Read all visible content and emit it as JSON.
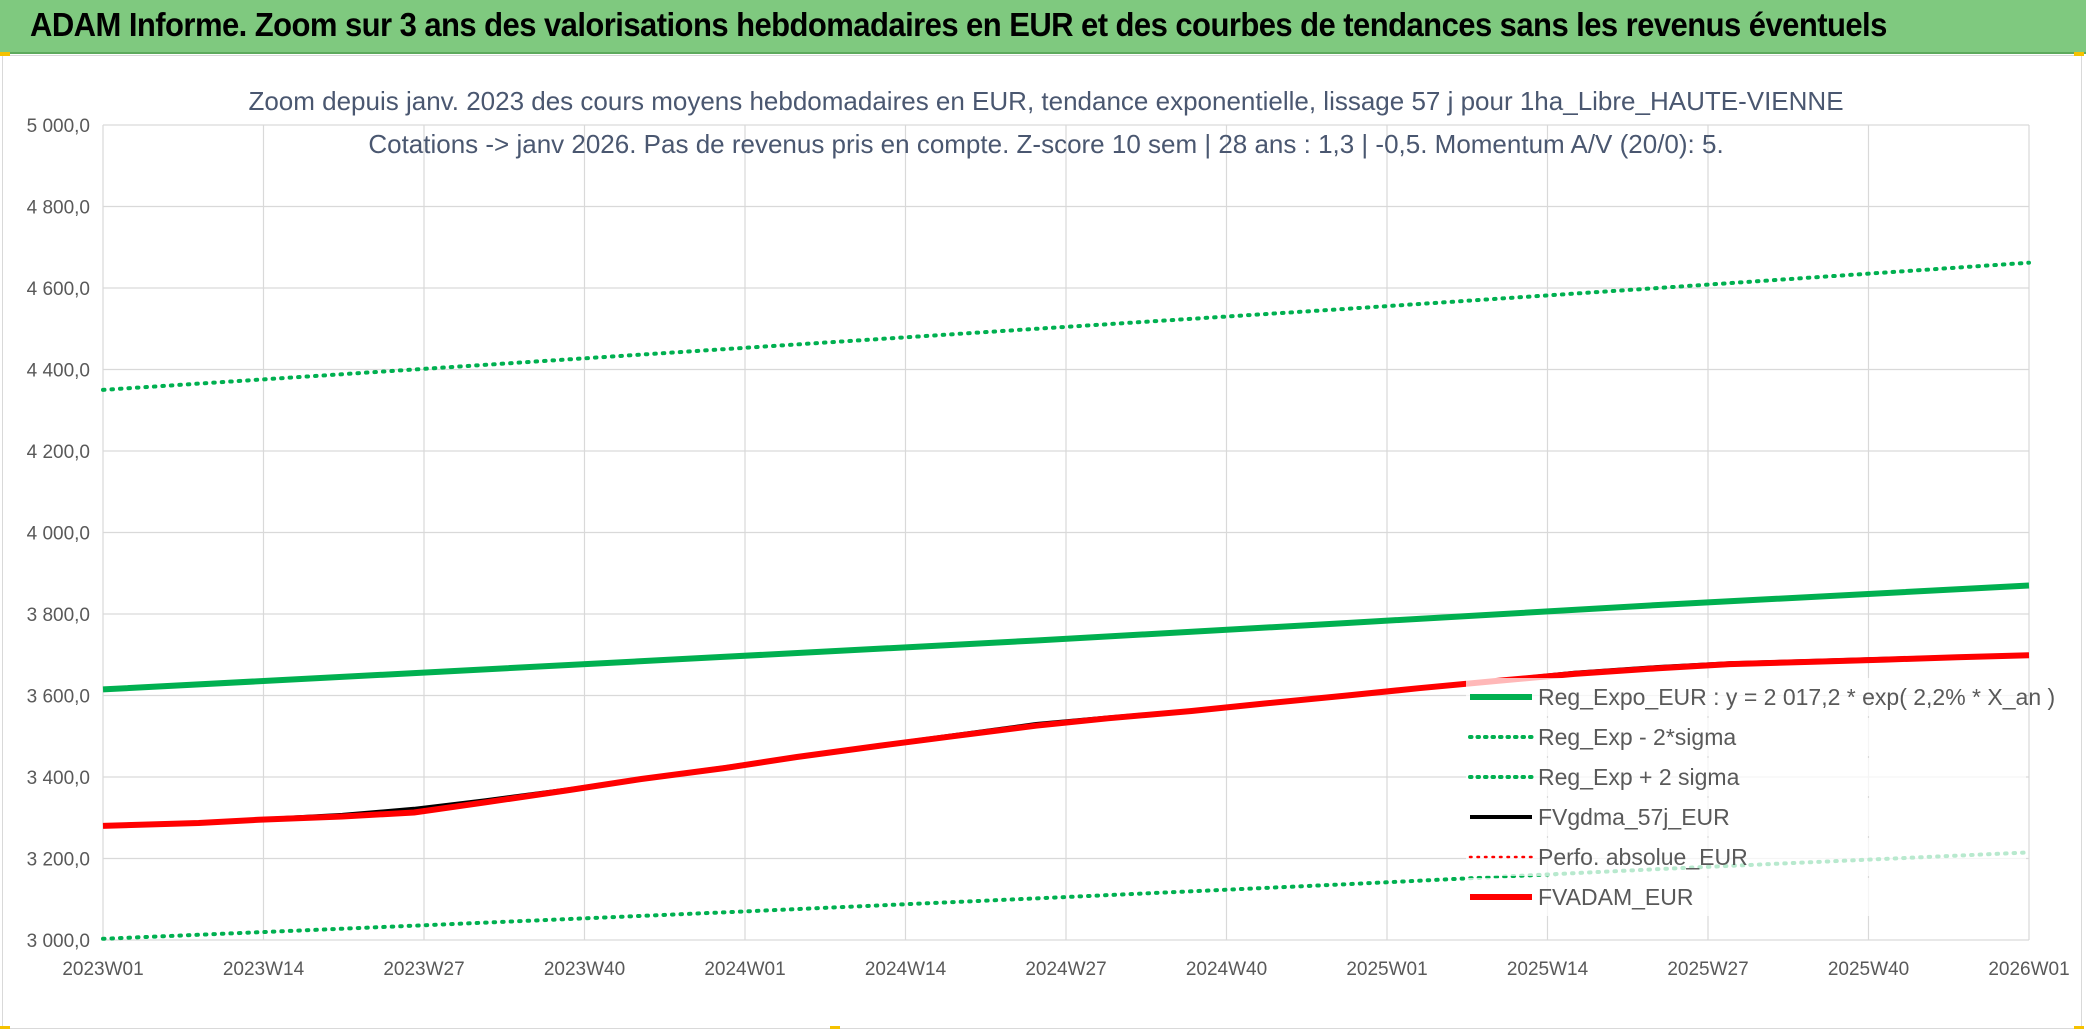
{
  "banner": {
    "title": "ADAM Informe. Zoom sur 3 ans des valorisations hebdomadaires en EUR et des courbes de tendances sans les revenus éventuels"
  },
  "colors": {
    "banner_bg": "#7fc97f",
    "trend_green": "#00b050",
    "black": "#000000",
    "red": "#ff0000",
    "grid": "#d9d9d9",
    "title_text": "#4a5770",
    "axis_text": "#595959"
  },
  "chart_data": {
    "type": "line",
    "title": "Zoom depuis janv. 2023 des cours moyens hebdomadaires en EUR, tendance exponentielle, lissage 57 j pour 1ha_Libre_HAUTE-VIENNE",
    "subtitle": "Cotations -> janv 2026. Pas de revenus pris en compte. Z-score 10 sem | 28 ans : 1,3 | -0,5. Momentum A/V (20/0): 5.",
    "xlabel": "",
    "ylabel": "",
    "x_ticks": [
      "2023W01",
      "2023W14",
      "2023W27",
      "2023W40",
      "2024W01",
      "2024W14",
      "2024W27",
      "2024W40",
      "2025W01",
      "2025W14",
      "2025W27",
      "2025W40",
      "2026W01"
    ],
    "xlim": [
      0,
      161
    ],
    "y_ticks": [
      "3 000,0",
      "3 200,0",
      "3 400,0",
      "3 600,0",
      "3 800,0",
      "4 000,0",
      "4 200,0",
      "4 400,0",
      "4 600,0",
      "4 800,0",
      "5 000,0"
    ],
    "ylim": [
      3000,
      5000
    ],
    "grid": true,
    "legend_position": "right",
    "series": [
      {
        "name": "Reg_Expo_EUR : y = 2 017,2 * exp( 2,2% *  X_an )",
        "color": "#00b050",
        "style": "solid",
        "width": "thick",
        "points": [
          [
            0,
            3615
          ],
          [
            26,
            3655
          ],
          [
            52,
            3695
          ],
          [
            78,
            3735
          ],
          [
            104,
            3778
          ],
          [
            130,
            3822
          ],
          [
            161,
            3870
          ]
        ]
      },
      {
        "name": "Reg_Exp - 2*sigma",
        "color": "#00b050",
        "style": "dotted",
        "width": "medium",
        "points": [
          [
            0,
            3003
          ],
          [
            26,
            3035
          ],
          [
            52,
            3068
          ],
          [
            78,
            3102
          ],
          [
            104,
            3137
          ],
          [
            130,
            3174
          ],
          [
            161,
            3215
          ]
        ]
      },
      {
        "name": "Reg_Exp + 2 sigma",
        "color": "#00b050",
        "style": "dotted",
        "width": "medium",
        "points": [
          [
            0,
            4350
          ],
          [
            26,
            4400
          ],
          [
            52,
            4450
          ],
          [
            78,
            4500
          ],
          [
            104,
            4549
          ],
          [
            130,
            4600
          ],
          [
            161,
            4662
          ]
        ]
      },
      {
        "name": "FVgdma_57j_EUR",
        "color": "#000000",
        "style": "solid",
        "width": "medium",
        "points": [
          [
            0,
            3281
          ],
          [
            8,
            3288
          ],
          [
            13,
            3296
          ],
          [
            20,
            3307
          ],
          [
            26,
            3322
          ],
          [
            32,
            3343
          ],
          [
            39,
            3370
          ],
          [
            45,
            3396
          ],
          [
            52,
            3424
          ],
          [
            58,
            3450
          ],
          [
            65,
            3478
          ],
          [
            71,
            3502
          ],
          [
            78,
            3530
          ],
          [
            84,
            3546
          ],
          [
            91,
            3563
          ],
          [
            97,
            3580
          ],
          [
            104,
            3600
          ],
          [
            110,
            3618
          ],
          [
            117,
            3638
          ],
          [
            123,
            3656
          ],
          [
            130,
            3670
          ],
          [
            136,
            3679
          ],
          [
            143,
            3685
          ],
          [
            149,
            3690
          ],
          [
            155,
            3695
          ],
          [
            161,
            3699
          ]
        ]
      },
      {
        "name": "Perfo. absolue_EUR",
        "color": "#ff0000",
        "style": "dotted",
        "width": "thin",
        "points": []
      },
      {
        "name": "FVADAM_EUR",
        "color": "#ff0000",
        "style": "solid",
        "width": "thick",
        "points": [
          [
            0,
            3280
          ],
          [
            8,
            3287
          ],
          [
            13,
            3295
          ],
          [
            20,
            3303
          ],
          [
            26,
            3313
          ],
          [
            32,
            3338
          ],
          [
            39,
            3368
          ],
          [
            45,
            3395
          ],
          [
            52,
            3422
          ],
          [
            58,
            3449
          ],
          [
            65,
            3477
          ],
          [
            71,
            3500
          ],
          [
            78,
            3526
          ],
          [
            84,
            3544
          ],
          [
            91,
            3562
          ],
          [
            97,
            3580
          ],
          [
            104,
            3600
          ],
          [
            110,
            3618
          ],
          [
            117,
            3637
          ],
          [
            123,
            3653
          ],
          [
            130,
            3667
          ],
          [
            136,
            3677
          ],
          [
            143,
            3683
          ],
          [
            149,
            3688
          ],
          [
            155,
            3694
          ],
          [
            161,
            3699
          ]
        ]
      }
    ]
  }
}
